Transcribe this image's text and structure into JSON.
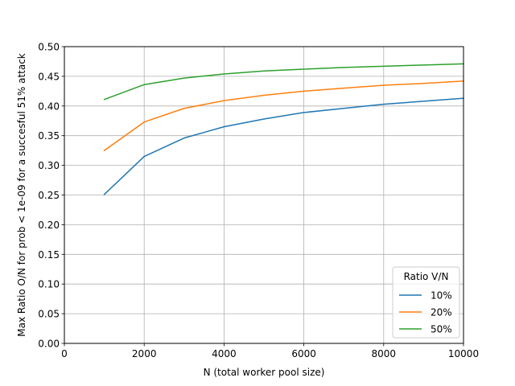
{
  "chart_data": {
    "type": "line",
    "title": "",
    "xlabel": "N (total worker pool size)",
    "ylabel": "Max Ratio O/N for prob < 1e-09 for a succesful 51% attack",
    "xlim": [
      0,
      10000
    ],
    "ylim": [
      0,
      0.5
    ],
    "x_ticks": [
      0,
      2000,
      4000,
      6000,
      8000,
      10000
    ],
    "x_tick_labels": [
      "0",
      "2000",
      "4000",
      "6000",
      "8000",
      "10000"
    ],
    "y_ticks": [
      0,
      0.05,
      0.1,
      0.15,
      0.2,
      0.25,
      0.3,
      0.35,
      0.4,
      0.45,
      0.5
    ],
    "y_tick_labels": [
      "0.00",
      "0.05",
      "0.10",
      "0.15",
      "0.20",
      "0.25",
      "0.30",
      "0.35",
      "0.40",
      "0.45",
      "0.50"
    ],
    "grid": true,
    "legend": {
      "title": "Ratio V/N",
      "placement": "lower-right"
    },
    "x": [
      1000,
      2000,
      3000,
      4000,
      5000,
      6000,
      7000,
      8000,
      9000,
      10000
    ],
    "series": [
      {
        "name": "10%",
        "color": "#1f77b4",
        "values": [
          0.251,
          0.315,
          0.346,
          0.365,
          0.378,
          0.389,
          0.396,
          0.403,
          0.408,
          0.413
        ]
      },
      {
        "name": "20%",
        "color": "#ff7f0e",
        "values": [
          0.325,
          0.373,
          0.396,
          0.409,
          0.418,
          0.425,
          0.43,
          0.435,
          0.438,
          0.442
        ]
      },
      {
        "name": "50%",
        "color": "#2ca02c",
        "values": [
          0.411,
          0.436,
          0.447,
          0.454,
          0.459,
          0.462,
          0.465,
          0.467,
          0.469,
          0.471
        ]
      }
    ]
  }
}
